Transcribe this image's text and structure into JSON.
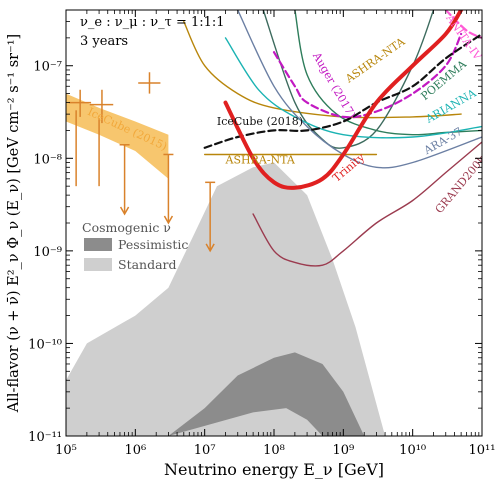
{
  "chart_data": {
    "type": "line",
    "title": "",
    "xlabel": "Neutrino energy E_ν [GeV]",
    "ylabel": "All-flavor (ν + ν̄) E²_ν Φ_ν (E_ν) [GeV cm⁻² s⁻¹ sr⁻¹]",
    "x_scale": "log",
    "y_scale": "log",
    "xlim": [
      100000,
      100000000000
    ],
    "ylim": [
      1e-11,
      4e-07
    ],
    "x_tick_labels": [
      "10⁵",
      "10⁶",
      "10⁷",
      "10⁸",
      "10⁹",
      "10¹⁰",
      "10¹¹"
    ],
    "y_tick_labels": [
      "10⁻¹¹",
      "10⁻¹⁰",
      "10⁻⁹",
      "10⁻⁸",
      "10⁻⁷"
    ],
    "annotations": [
      "ν_e : ν_μ : ν_τ = 1:1:1",
      "3 years"
    ],
    "legend": {
      "title": "Cosmogenic ν",
      "placement": "left-middle",
      "entries": [
        {
          "label": "Pessimistic",
          "color": "#8c8c8c"
        },
        {
          "label": "Standard",
          "color": "#cfcfcf"
        }
      ]
    },
    "bands": [
      {
        "name": "Standard",
        "color": "#cfcfcf",
        "upper": [
          [
            100000,
            4e-11
          ],
          [
            200000,
            1e-10
          ],
          [
            1000000,
            2e-10
          ],
          [
            3000000,
            4e-10
          ],
          [
            7000000,
            1.5e-09
          ],
          [
            15000000,
            5e-09
          ],
          [
            50000000,
            8e-09
          ],
          [
            100000000,
            9e-09
          ],
          [
            300000000,
            4e-09
          ],
          [
            700000000,
            8e-10
          ],
          [
            1500000000,
            1.5e-10
          ],
          [
            4000000000,
            1e-11
          ]
        ],
        "lower": [
          [
            100000,
            1e-11
          ],
          [
            4000000000,
            1e-11
          ]
        ]
      },
      {
        "name": "Pessimistic",
        "color": "#8c8c8c",
        "upper": [
          [
            3000000,
            1e-11
          ],
          [
            10000000,
            2e-11
          ],
          [
            30000000,
            4.5e-11
          ],
          [
            100000000,
            7e-11
          ],
          [
            200000000,
            8e-11
          ],
          [
            500000000,
            6e-11
          ],
          [
            1000000000,
            3e-11
          ],
          [
            2000000000,
            1e-11
          ]
        ],
        "lower": [
          [
            3000000,
            1e-11
          ],
          [
            50000000,
            1.8e-11
          ],
          [
            150000000,
            2e-11
          ],
          [
            300000000,
            1.5e-11
          ],
          [
            500000000,
            1e-11
          ]
        ]
      },
      {
        "name": "IceCube (2015)",
        "color": "#f7c66e",
        "upper": [
          [
            100000,
            5e-08
          ],
          [
            300000,
            3.5e-08
          ],
          [
            1000000,
            2.5e-08
          ],
          [
            3000000,
            1.8e-08
          ]
        ],
        "lower": [
          [
            100000,
            2.5e-08
          ],
          [
            300000,
            1.8e-08
          ],
          [
            1000000,
            1.2e-08
          ],
          [
            3000000,
            6e-09
          ]
        ]
      }
    ],
    "series": [
      {
        "name": "ASHRA-NTA",
        "color": "#b8860b",
        "width": 1.4,
        "dash": "",
        "points": [
          [
            5000000,
            3e-07
          ],
          [
            10000000,
            1e-07
          ],
          [
            30000000,
            5e-08
          ],
          [
            100000000,
            3.5e-08
          ],
          [
            1000000000,
            2.8e-08
          ],
          [
            10000000000,
            2.8e-08
          ],
          [
            50000000000,
            3e-08
          ]
        ]
      },
      {
        "name": "ASHRA-NTA",
        "color": "#b8860b",
        "width": 1.4,
        "dash": "",
        "points": [
          [
            10000000,
            1.1e-08
          ],
          [
            3000000000,
            1.1e-08
          ]
        ]
      },
      {
        "name": "POEMMA",
        "color": "#2e7d5b",
        "width": 1.4,
        "dash": "",
        "points": [
          [
            200000000,
            4e-07
          ],
          [
            300000000,
            8e-08
          ],
          [
            800000000,
            3e-08
          ],
          [
            3000000000,
            2e-08
          ],
          [
            10000000000,
            1.8e-08
          ],
          [
            30000000000,
            1.9e-08
          ],
          [
            100000000000,
            2e-08
          ]
        ]
      },
      {
        "name": "",
        "color": "#3d6b5e",
        "width": 1.4,
        "dash": "",
        "points": [
          [
            70000000,
            4e-07
          ],
          [
            200000000,
            4e-08
          ],
          [
            500000000,
            1.6e-08
          ],
          [
            1000000000,
            1.3e-08
          ],
          [
            3000000000,
            2e-08
          ],
          [
            10000000000,
            1e-07
          ],
          [
            20000000000,
            4e-07
          ]
        ]
      },
      {
        "name": "ARIANNA",
        "color": "#1bb3b3",
        "width": 1.4,
        "dash": "",
        "points": [
          [
            20000000,
            2e-07
          ],
          [
            60000000,
            5.5e-08
          ],
          [
            200000000,
            2.8e-08
          ],
          [
            1000000000,
            1.8e-08
          ],
          [
            10000000000,
            1.7e-08
          ],
          [
            100000000000,
            2.2e-08
          ]
        ]
      },
      {
        "name": "ARA-37",
        "color": "#6b7fa3",
        "width": 1.4,
        "dash": "",
        "points": [
          [
            30000000,
            4e-07
          ],
          [
            100000000,
            6e-08
          ],
          [
            300000000,
            2.2e-08
          ],
          [
            1000000000,
            1.1e-08
          ],
          [
            3000000000,
            8e-09
          ],
          [
            10000000000,
            9e-09
          ],
          [
            100000000000,
            1.7e-08
          ]
        ]
      },
      {
        "name": "GRAND200k",
        "color": "#9b3b4f",
        "width": 1.4,
        "dash": "",
        "points": [
          [
            50000000,
            2.5e-09
          ],
          [
            100000000,
            1e-09
          ],
          [
            200000000,
            7.5e-10
          ],
          [
            500000000,
            7e-10
          ],
          [
            1000000000,
            1e-09
          ],
          [
            3000000000,
            2e-09
          ],
          [
            10000000000,
            3.5e-09
          ],
          [
            30000000000,
            7e-09
          ],
          [
            100000000000,
            1.5e-08
          ]
        ]
      },
      {
        "name": "Auger (2017)",
        "color": "#c219c2",
        "width": 2.2,
        "dash": "7 4",
        "points": [
          [
            100000000,
            1.4e-07
          ],
          [
            200000000,
            6e-08
          ],
          [
            300000000,
            4e-08
          ],
          [
            1000000000,
            2.8e-08
          ],
          [
            3000000000,
            3.2e-08
          ],
          [
            10000000000,
            5e-08
          ],
          [
            30000000000,
            1e-07
          ],
          [
            50000000000,
            2.2e-07
          ]
        ]
      },
      {
        "name": "ANITA-IV",
        "color": "#ff5bd6",
        "width": 2.2,
        "dash": "7 4",
        "points": [
          [
            30000000000,
            4e-07
          ],
          [
            60000000000,
            2.4e-07
          ],
          [
            100000000000,
            2e-07
          ]
        ]
      },
      {
        "name": "IceCube (2018)",
        "color": "#111111",
        "width": 2.2,
        "dash": "7 4",
        "points": [
          [
            10000000,
            1.3e-08
          ],
          [
            30000000,
            1.7e-08
          ],
          [
            100000000,
            2e-08
          ],
          [
            300000000,
            2e-08
          ],
          [
            1000000000,
            2.5e-08
          ],
          [
            3000000000,
            4e-08
          ],
          [
            10000000000,
            6e-08
          ],
          [
            30000000000,
            1.2e-07
          ],
          [
            100000000000,
            2.2e-07
          ]
        ]
      },
      {
        "name": "Trinity",
        "color": "#e02020",
        "width": 4,
        "dash": "",
        "points": [
          [
            20000000,
            4e-08
          ],
          [
            50000000,
            1e-08
          ],
          [
            100000000,
            5.5e-09
          ],
          [
            200000000,
            4.8e-09
          ],
          [
            500000000,
            6e-09
          ],
          [
            1000000000,
            1.1e-08
          ],
          [
            3000000000,
            4e-08
          ],
          [
            10000000000,
            1e-07
          ],
          [
            30000000000,
            2.2e-07
          ],
          [
            50000000000,
            4e-07
          ]
        ]
      }
    ],
    "ic_points": [
      {
        "x": 160000,
        "y": 4e-08,
        "xerr": [
          110000,
          230000
        ],
        "yerr": [
          2.8e-08,
          5.5e-08
        ]
      },
      {
        "x": 330000,
        "y": 3.8e-08,
        "xerr": [
          220000,
          480000
        ],
        "yerr": [
          2.4e-08,
          5.5e-08
        ]
      },
      {
        "x": 1600000,
        "y": 6.5e-08,
        "xerr": [
          1100000,
          2300000
        ],
        "yerr": [
          5e-08,
          8.5e-08
        ]
      },
      {
        "x": 140000,
        "y": 3.3e-08,
        "yerr": [
          5e-09,
          3.3e-08
        ],
        "upper_limit": false
      },
      {
        "x": 300000,
        "y": 2.7e-08,
        "yerr": [
          5e-09,
          2.7e-08
        ],
        "upper_limit": false
      }
    ],
    "upper_limits": [
      {
        "x": 700000,
        "y": 1.4e-08,
        "to": 2.5e-09
      },
      {
        "x": 3000000,
        "y": 1.1e-08,
        "to": 2e-09
      },
      {
        "x": 12000000,
        "y": 5.5e-09,
        "to": 1e-09
      }
    ],
    "labels": [
      {
        "text": "IceCube (2015)",
        "x": 200000,
        "y": 3e-08,
        "color": "#f2a83a",
        "rotate": 25
      },
      {
        "text": "ASHRA-NTA",
        "x": 1200000000,
        "y": 6.5e-08,
        "color": "#b8860b",
        "rotate": -35
      },
      {
        "text": "Auger (2017)",
        "x": 360000000,
        "y": 1.3e-07,
        "color": "#c219c2",
        "rotate": 60
      },
      {
        "text": "ANITA-IV",
        "x": 30000000000,
        "y": 3.3e-07,
        "color": "#ff5bd6",
        "rotate": 55
      },
      {
        "text": "POEMMA",
        "x": 15000000000,
        "y": 4.2e-08,
        "color": "#2e7d5b",
        "rotate": -40
      },
      {
        "text": "ARIANNA",
        "x": 17000000000,
        "y": 2.4e-08,
        "color": "#1bb3b3",
        "rotate": -30
      },
      {
        "text": "ARA-37",
        "x": 16000000000,
        "y": 1.1e-08,
        "color": "#6b7fa3",
        "rotate": -30
      },
      {
        "text": "GRAND200k",
        "x": 25000000000,
        "y": 2.5e-09,
        "color": "#9b3b4f",
        "rotate": -50
      },
      {
        "text": "IceCube (2018)",
        "x": 15000000,
        "y": 2.3e-08,
        "color": "#111111",
        "rotate": 0
      },
      {
        "text": "ASHRA-NTA",
        "x": 20000000,
        "y": 8.8e-09,
        "color": "#b8860b",
        "rotate": 0
      },
      {
        "text": "Trinity",
        "x": 800000000,
        "y": 5.5e-09,
        "color": "#e02020",
        "rotate": -40
      }
    ]
  }
}
